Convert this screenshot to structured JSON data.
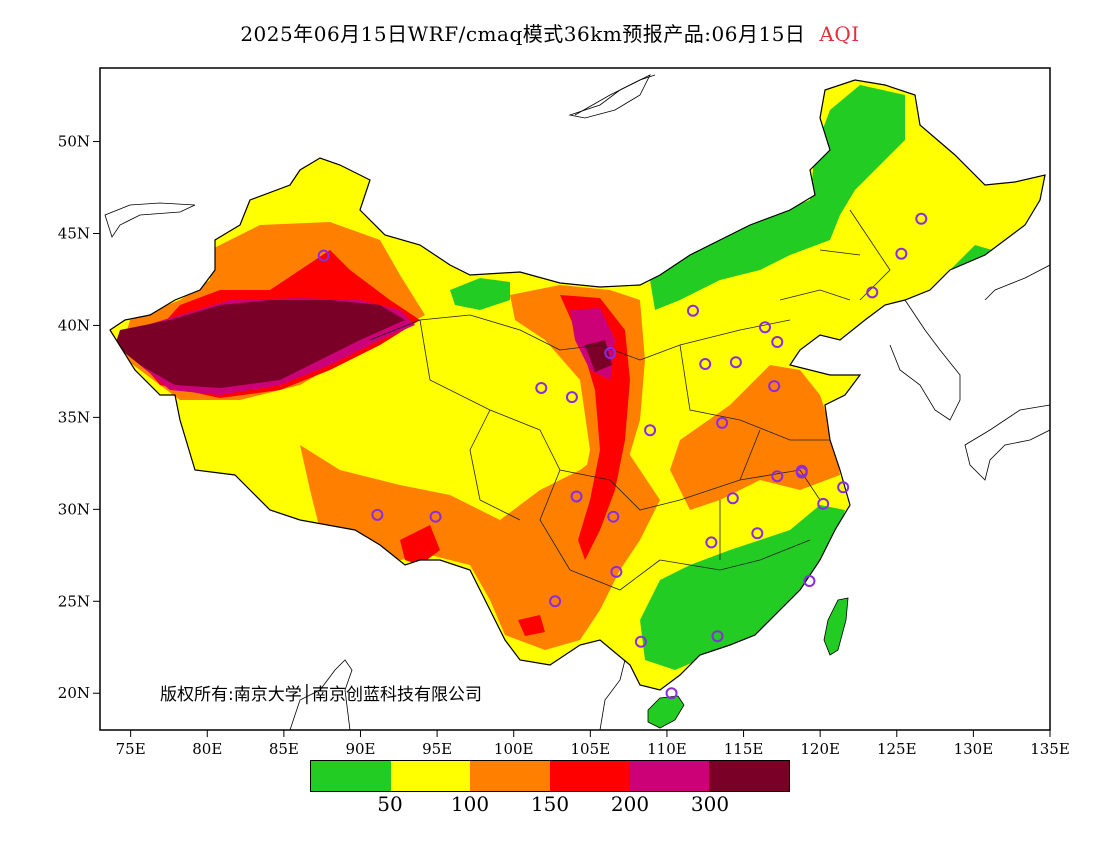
{
  "title": {
    "main": "2025年06月15日WRF/cmaq模式36km预报产品:06月15日",
    "variable": "AQI"
  },
  "credit": "版权所有:南京大学│南京创蓝科技有限公司",
  "axes": {
    "lat_labels": [
      "50N",
      "45N",
      "40N",
      "35N",
      "30N",
      "25N",
      "20N"
    ],
    "lon_labels": [
      "75E",
      "80E",
      "85E",
      "90E",
      "95E",
      "100E",
      "105E",
      "110E",
      "115E",
      "120E",
      "125E",
      "130E",
      "135E"
    ]
  },
  "legend": {
    "colors": [
      "#22cc22",
      "#ffff00",
      "#ff8000",
      "#ff0000",
      "#cc0077",
      "#7a0028"
    ],
    "labels": [
      "50",
      "100",
      "150",
      "200",
      "300"
    ]
  },
  "palette": {
    "good": "#22cc22",
    "moderate": "#ffff00",
    "sensitive": "#ff8000",
    "unhealthy": "#ff0000",
    "very_unhealthy": "#cc0077",
    "hazardous": "#7a0028",
    "station_marker": "#8a2be2"
  },
  "stations": [
    {
      "lon": 87.6,
      "lat": 43.8
    },
    {
      "lon": 91.1,
      "lat": 29.7
    },
    {
      "lon": 94.9,
      "lat": 29.6
    },
    {
      "lon": 101.8,
      "lat": 36.6
    },
    {
      "lon": 103.8,
      "lat": 36.1
    },
    {
      "lon": 104.1,
      "lat": 30.7
    },
    {
      "lon": 106.5,
      "lat": 29.6
    },
    {
      "lon": 106.7,
      "lat": 26.6
    },
    {
      "lon": 102.7,
      "lat": 25.0
    },
    {
      "lon": 108.3,
      "lat": 22.8
    },
    {
      "lon": 110.3,
      "lat": 20.0
    },
    {
      "lon": 113.3,
      "lat": 23.1
    },
    {
      "lon": 119.3,
      "lat": 26.1
    },
    {
      "lon": 120.2,
      "lat": 30.3
    },
    {
      "lon": 121.5,
      "lat": 31.2
    },
    {
      "lon": 118.8,
      "lat": 32.1
    },
    {
      "lon": 117.2,
      "lat": 31.8
    },
    {
      "lon": 114.3,
      "lat": 30.6
    },
    {
      "lon": 112.9,
      "lat": 28.2
    },
    {
      "lon": 115.9,
      "lat": 28.7
    },
    {
      "lon": 113.6,
      "lat": 34.7
    },
    {
      "lon": 108.9,
      "lat": 34.3
    },
    {
      "lon": 112.5,
      "lat": 37.9
    },
    {
      "lon": 114.5,
      "lat": 38.0
    },
    {
      "lon": 117.0,
      "lat": 36.7
    },
    {
      "lon": 116.4,
      "lat": 39.9
    },
    {
      "lon": 117.2,
      "lat": 39.1
    },
    {
      "lon": 111.7,
      "lat": 40.8
    },
    {
      "lon": 106.3,
      "lat": 38.5
    },
    {
      "lon": 123.4,
      "lat": 41.8
    },
    {
      "lon": 125.3,
      "lat": 43.9
    },
    {
      "lon": 126.6,
      "lat": 45.8
    },
    {
      "lon": 118.8,
      "lat": 32.0
    }
  ]
}
